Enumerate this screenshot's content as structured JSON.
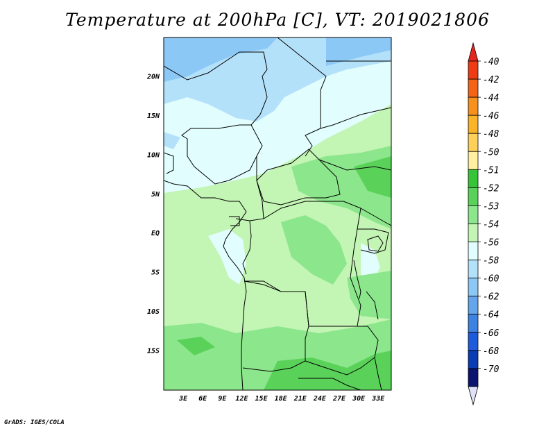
{
  "title": "Temperature at 200hPa [C], VT: 2019021806",
  "credit": "GrADS: IGES/COLA",
  "map": {
    "lon_range": [
      0,
      35
    ],
    "lat_range": [
      -20,
      25
    ],
    "lat_ticks": [
      "20N",
      "15N",
      "10N",
      "5N",
      "EQ",
      "5S",
      "10S",
      "15S"
    ],
    "lon_ticks": [
      "3E",
      "6E",
      "9E",
      "12E",
      "15E",
      "18E",
      "21E",
      "24E",
      "27E",
      "30E",
      "33E"
    ]
  },
  "colorbar": {
    "labels": [
      "-40",
      "-42",
      "-44",
      "-46",
      "-48",
      "-50",
      "-51",
      "-52",
      "-53",
      "-54",
      "-56",
      "-58",
      "-60",
      "-62",
      "-64",
      "-66",
      "-68",
      "-70"
    ],
    "colors": {
      "top_arrow": "#e6261e",
      "bottom_arrow": "#e0e0f8",
      "bands": [
        "#f03c14",
        "#f56414",
        "#f8901c",
        "#fbb428",
        "#fdd05a",
        "#fff0a0",
        "#38c438",
        "#5ad25a",
        "#8ce68c",
        "#c3f5b4",
        "#e1fdfd",
        "#b4e1fa",
        "#8cc8f5",
        "#64a5eb",
        "#3c82e1",
        "#1e5adc",
        "#0a3cb4",
        "#0a1470"
      ]
    }
  },
  "colors": {
    "green_light": "#c3f5b4",
    "green_mid": "#8ce68c",
    "green_dark": "#5ad25a",
    "cyan_pale": "#e1fdfd",
    "blue_light": "#b4e1fa",
    "blue_mid": "#8cc8f5"
  }
}
